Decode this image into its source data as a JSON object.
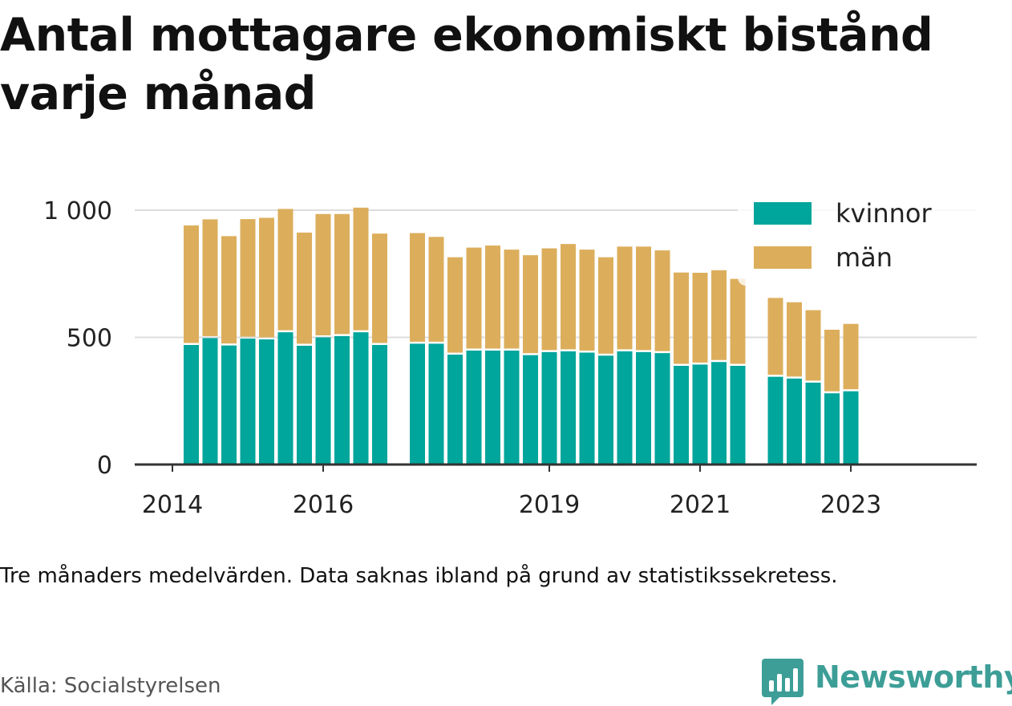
{
  "title": "Antal mottagare ekonomiskt bistånd varje månad",
  "note": "Tre månaders medelvärden. Data saknas ibland på grund av statistikssekretess.",
  "source": "Källa: Socialstyrelsen",
  "brand": {
    "name": "Newsworthy",
    "icon": "bar-chart-speech-bubble-icon",
    "color": "#3d9e97"
  },
  "colors": {
    "kvinnor": "#00a59b",
    "man": "#dcae5c",
    "grid": "#dddddd",
    "axis": "#333333"
  },
  "chart_data": {
    "type": "bar",
    "stacked": true,
    "x_ticks": [
      {
        "label": "2014",
        "x": 2014.0
      },
      {
        "label": "2016",
        "x": 2016.0
      },
      {
        "label": "2019",
        "x": 2019.0
      },
      {
        "label": "2021",
        "x": 2021.0
      },
      {
        "label": "2023",
        "x": 2023.0
      }
    ],
    "y_ticks": [
      {
        "label": "0",
        "value": 0
      },
      {
        "label": "500",
        "value": 500
      },
      {
        "label": "1 000",
        "value": 1000
      }
    ],
    "ylim": [
      0,
      1000
    ],
    "xlim": [
      2013.5,
      2024.67
    ],
    "legend_position": "top-right",
    "grid": true,
    "series": [
      {
        "name": "kvinnor",
        "values": [
          470,
          497,
          468,
          495,
          492,
          520,
          467,
          500,
          505,
          520,
          470,
          475,
          475,
          432,
          448,
          448,
          448,
          430,
          442,
          445,
          440,
          428,
          445,
          442,
          438,
          388,
          393,
          403,
          388,
          345,
          338,
          322,
          280,
          288
        ]
      },
      {
        "name": "män",
        "values": [
          470,
          467,
          430,
          470,
          478,
          485,
          445,
          485,
          480,
          490,
          438,
          435,
          420,
          383,
          405,
          413,
          397,
          393,
          408,
          422,
          405,
          387,
          412,
          415,
          404,
          367,
          361,
          361,
          342,
          310,
          300,
          285,
          250,
          265
        ]
      }
    ],
    "x": [
      2014.25,
      2014.5,
      2014.75,
      2015.0,
      2015.25,
      2015.5,
      2015.75,
      2016.0,
      2016.25,
      2016.5,
      2016.75,
      2017.25,
      2017.5,
      2017.75,
      2018.0,
      2018.25,
      2018.5,
      2018.75,
      2019.0,
      2019.25,
      2019.5,
      2019.75,
      2020.0,
      2020.25,
      2020.5,
      2020.75,
      2021.0,
      2021.25,
      2021.5,
      2022.0,
      2022.25,
      2022.5,
      2022.75,
      2023.0
    ]
  }
}
